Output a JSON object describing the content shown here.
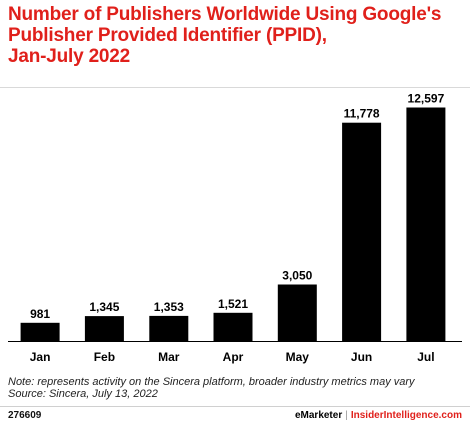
{
  "header": {
    "title_lines": [
      "Number of Publishers Worldwide Using Google's",
      "Publisher Provided Identifier (PPID),",
      "Jan-July 2022"
    ]
  },
  "chart_data": {
    "type": "bar",
    "title": "Number of Publishers Worldwide Using Google's Publisher Provided Identifier (PPID), Jan-July 2022",
    "categories": [
      "Jan",
      "Feb",
      "Mar",
      "Apr",
      "May",
      "Jun",
      "Jul"
    ],
    "values": [
      981,
      1345,
      1353,
      1521,
      3050,
      11778,
      12597
    ],
    "value_labels": [
      "981",
      "1,345",
      "1,353",
      "1,521",
      "3,050",
      "11,778",
      "12,597"
    ],
    "xlabel": "",
    "ylabel": "",
    "ylim": [
      0,
      13000
    ],
    "grid": false,
    "legend": "none",
    "bar_color": "#000000"
  },
  "footer": {
    "note": "Note: represents activity on the Sincera platform, broader industry metrics may vary",
    "source": "Source: Sincera, July 13, 2022",
    "chart_id": "276609",
    "brand_left": "eMarketer",
    "brand_sep": "|",
    "brand_right": "InsiderIntelligence.com"
  },
  "colors": {
    "title": "#e0201b",
    "brand_right": "#e0201b",
    "bars": "#000000",
    "axis": "#000000"
  }
}
